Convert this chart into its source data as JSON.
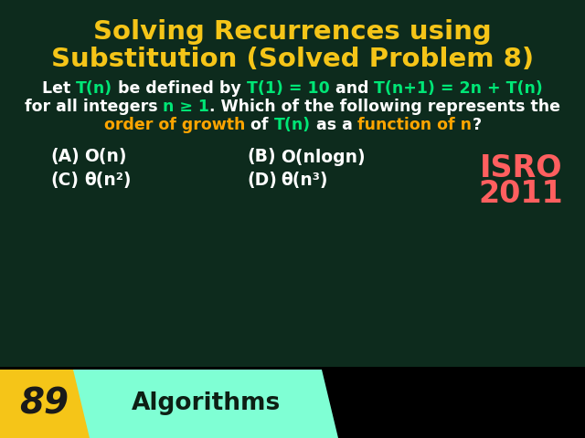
{
  "bg": "#0d2b1d",
  "title_color": "#f5c518",
  "white": "#ffffff",
  "green": "#00e676",
  "orange": "#ffa500",
  "isro_color": "#ff5f5f",
  "number_bg": "#f5c518",
  "algo_bg": "#7fffd4",
  "title_line1": "Solving Recurrences using",
  "title_line2": "Substitution (Solved Problem 8)",
  "number_text": "89",
  "algo_text": "Algorithms"
}
